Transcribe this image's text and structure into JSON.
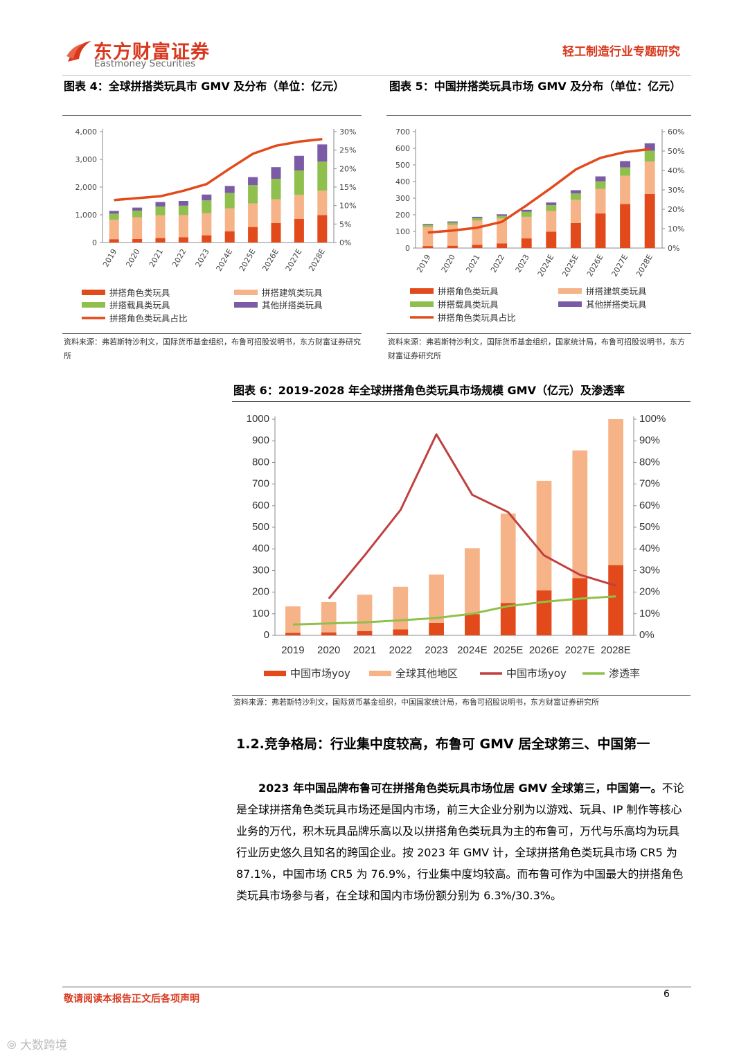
{
  "header": {
    "logo_cn": "东方财富证券",
    "logo_en": "Eastmoney Securities",
    "report_type": "轻工制造行业专题研究"
  },
  "colors": {
    "brand": "#d9381e",
    "series_character": "#e24a1b",
    "series_building": "#f6b387",
    "series_vehicle": "#8fbf4d",
    "series_other": "#7b5ba6",
    "ratio_line": "#e24a1b",
    "chart3_line_red": "#c0403f",
    "chart3_line_green": "#8fc04a"
  },
  "fig4": {
    "caption": "图表 4：全球拼搭类玩具市 GMV 及分布（单位：亿元）",
    "source": "资料来源：弗若斯特沙利文，国际货币基金组织，布鲁可招股说明书，东方财富证券研究所",
    "chart_data": {
      "type": "bar",
      "stacked": true,
      "categories": [
        "2019",
        "2020",
        "2021",
        "2022",
        "2023",
        "2024E",
        "2025E",
        "2026E",
        "2027E",
        "2028E"
      ],
      "y_ticks": [
        "0",
        "1,000",
        "2,000",
        "3,000",
        "4,000"
      ],
      "y2_ticks": [
        "0%",
        "5%",
        "10%",
        "15%",
        "20%",
        "25%",
        "30%"
      ],
      "ylim": [
        0,
        4000
      ],
      "y2lim": [
        0,
        0.3
      ],
      "series": [
        {
          "name": "拼搭角色类玩具",
          "values": [
            120,
            130,
            160,
            190,
            260,
            400,
            560,
            700,
            850,
            990
          ]
        },
        {
          "name": "拼搭建筑类玩具",
          "values": [
            700,
            780,
            820,
            800,
            800,
            830,
            850,
            860,
            870,
            880
          ]
        },
        {
          "name": "拼搭载具类玩具",
          "values": [
            220,
            240,
            320,
            340,
            460,
            560,
            660,
            740,
            880,
            1050
          ]
        },
        {
          "name": "其他拼搭类玩具",
          "values": [
            100,
            110,
            160,
            170,
            210,
            250,
            290,
            420,
            530,
            620
          ]
        }
      ],
      "line": {
        "name": "拼搭角色类玩具占比",
        "values": [
          0.115,
          0.12,
          0.125,
          0.14,
          0.158,
          0.2,
          0.24,
          0.262,
          0.273,
          0.28
        ]
      },
      "legend_position": "bottom",
      "grid": false
    }
  },
  "fig5": {
    "caption": "图表 5：中国拼搭类玩具市场 GMV 及分布（单位：亿元）",
    "source": "资料来源：弗若斯特沙利文，国际货币基金组织，国家统计局，布鲁可招股说明书，东方财富证券研究所",
    "chart_data": {
      "type": "bar",
      "stacked": true,
      "categories": [
        "2019",
        "2020",
        "2021",
        "2022",
        "2023",
        "2024E",
        "2025E",
        "2026E",
        "2027E",
        "2028E"
      ],
      "y_ticks": [
        "0",
        "100",
        "200",
        "300",
        "400",
        "500",
        "600",
        "700"
      ],
      "y2_ticks": [
        "0%",
        "10%",
        "20%",
        "30%",
        "40%",
        "50%",
        "60%"
      ],
      "ylim": [
        0,
        700
      ],
      "y2lim": [
        0,
        0.6
      ],
      "series": [
        {
          "name": "拼搭角色类玩具",
          "values": [
            12,
            14,
            20,
            28,
            58,
            98,
            150,
            208,
            265,
            325
          ]
        },
        {
          "name": "拼搭建筑类玩具",
          "values": [
            115,
            125,
            145,
            150,
            130,
            125,
            140,
            148,
            170,
            195
          ]
        },
        {
          "name": "拼搭载具类玩具",
          "values": [
            12,
            14,
            15,
            16,
            30,
            35,
            38,
            45,
            50,
            65
          ]
        },
        {
          "name": "其他拼搭类玩具",
          "values": [
            6,
            7,
            8,
            9,
            12,
            16,
            20,
            30,
            38,
            45
          ]
        }
      ],
      "line": {
        "name": "拼搭角色类玩具占比",
        "values": [
          0.08,
          0.09,
          0.105,
          0.135,
          0.22,
          0.31,
          0.405,
          0.465,
          0.495,
          0.51
        ]
      },
      "legend_position": "bottom",
      "grid": false
    }
  },
  "fig6": {
    "caption": "图表 6：2019-2028 年全球拼搭角色类玩具市场规模 GMV（亿元）及渗透率",
    "source": "资料来源：弗若斯特沙利文，国际货币基金组织，中国国家统计局，布鲁可招股说明书，东方财富证券研究所",
    "chart_data": {
      "type": "bar",
      "stacked": true,
      "categories": [
        "2019",
        "2020",
        "2021",
        "2022",
        "2023",
        "2024E",
        "2025E",
        "2026E",
        "2027E",
        "2028E"
      ],
      "y_ticks": [
        "0",
        "100",
        "200",
        "300",
        "400",
        "500",
        "600",
        "700",
        "800",
        "900",
        "1000"
      ],
      "y2_ticks": [
        "0%",
        "10%",
        "20%",
        "30%",
        "40%",
        "50%",
        "60%",
        "70%",
        "80%",
        "90%",
        "100%"
      ],
      "ylim": [
        0,
        1000
      ],
      "y2lim": [
        0,
        1.0
      ],
      "series": [
        {
          "name": "中国市场yoy",
          "values": [
            12,
            14,
            20,
            28,
            58,
            98,
            150,
            208,
            265,
            325
          ]
        },
        {
          "name": "全球其他地区",
          "values": [
            122,
            140,
            168,
            197,
            223,
            305,
            413,
            507,
            590,
            675
          ]
        }
      ],
      "lines": [
        {
          "name": "中国市场yoy",
          "values": [
            null,
            0.17,
            0.37,
            0.58,
            0.93,
            0.65,
            0.57,
            0.37,
            0.28,
            0.23
          ]
        },
        {
          "name": "渗透率",
          "values": [
            0.05,
            0.055,
            0.06,
            0.07,
            0.08,
            0.1,
            0.135,
            0.155,
            0.17,
            0.18
          ]
        }
      ],
      "legend_position": "bottom",
      "grid": false
    }
  },
  "section": {
    "title": "1.2.竞争格局：行业集中度较高，布鲁可 GMV 居全球第三、中国第一",
    "para_lead": "2023 年中国品牌布鲁可在拼搭角色类玩具市场位居 GMV 全球第三，中国第一。",
    "para_body": "不论是全球拼搭角色类玩具市场还是国内市场，前三大企业分别为以游戏、玩具、IP 制作等核心业务的万代，积木玩具品牌乐高以及以拼搭角色类玩具为主的布鲁可，万代与乐高均为玩具行业历史悠久且知名的跨国企业。按 2023 年 GMV 计，全球拼搭角色类玩具市场 CR5 为 87.1%，中国市场 CR5 为 76.9%，行业集中度均较高。而布鲁可作为中国最大的拼搭角色类玩具市场参与者，在全球和国内市场份额分别为 6.3%/30.3%。"
  },
  "footer": {
    "disclaimer": "敬请阅读本报告正文后各项声明",
    "page_number": "6",
    "watermark": "大数跨境"
  }
}
